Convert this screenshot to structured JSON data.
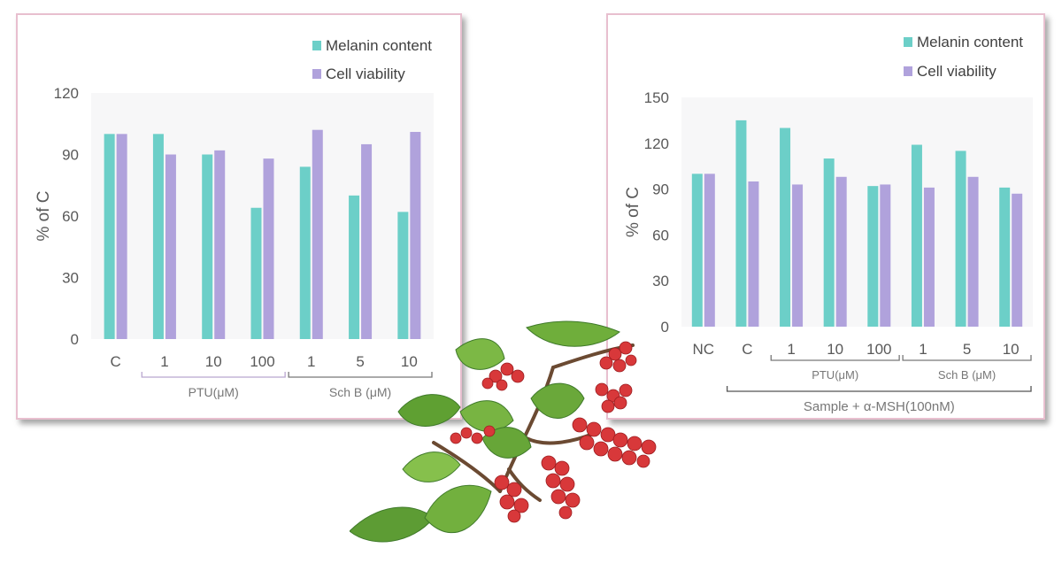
{
  "chart_data": [
    {
      "type": "bar",
      "title": "",
      "xlabel": "",
      "ylabel": "% of C",
      "ylim": [
        0,
        120
      ],
      "yticks": [
        0,
        30,
        60,
        90,
        120
      ],
      "grid": false,
      "legend_position": "top-right",
      "categories": [
        "C",
        "1",
        "10",
        "100",
        "1",
        "5",
        "10"
      ],
      "series": [
        {
          "name": "Melanin content",
          "color": "#6ccfc8",
          "values": [
            100,
            100,
            90,
            64,
            84,
            70,
            62
          ]
        },
        {
          "name": "Cell viability",
          "color": "#b0a2dc",
          "values": [
            100,
            90,
            92,
            88,
            102,
            95,
            101
          ]
        }
      ],
      "groups": [
        {
          "label": "PTU(μM)",
          "from": 1,
          "to": 3
        },
        {
          "label": "Sch B (μM)",
          "from": 4,
          "to": 6
        }
      ]
    },
    {
      "type": "bar",
      "title": "",
      "xlabel": "",
      "ylabel": "% of C",
      "ylim": [
        0,
        150
      ],
      "yticks": [
        0,
        30,
        60,
        90,
        120,
        150
      ],
      "grid": false,
      "legend_position": "top-right",
      "categories": [
        "NC",
        "C",
        "1",
        "10",
        "100",
        "1",
        "5",
        "10"
      ],
      "series": [
        {
          "name": "Melanin content",
          "color": "#6ccfc8",
          "values": [
            100,
            135,
            130,
            110,
            92,
            119,
            115,
            91
          ]
        },
        {
          "name": "Cell viability",
          "color": "#b0a2dc",
          "values": [
            100,
            95,
            93,
            98,
            93,
            91,
            98,
            87
          ]
        }
      ],
      "groups": [
        {
          "label": "PTU(μM)",
          "from": 2,
          "to": 4
        },
        {
          "label": "Sch B (μM)",
          "from": 5,
          "to": 7
        }
      ],
      "bottom_bracket": {
        "label": "Sample + α-MSH(100nM)",
        "from": 1,
        "to": 7
      }
    }
  ]
}
